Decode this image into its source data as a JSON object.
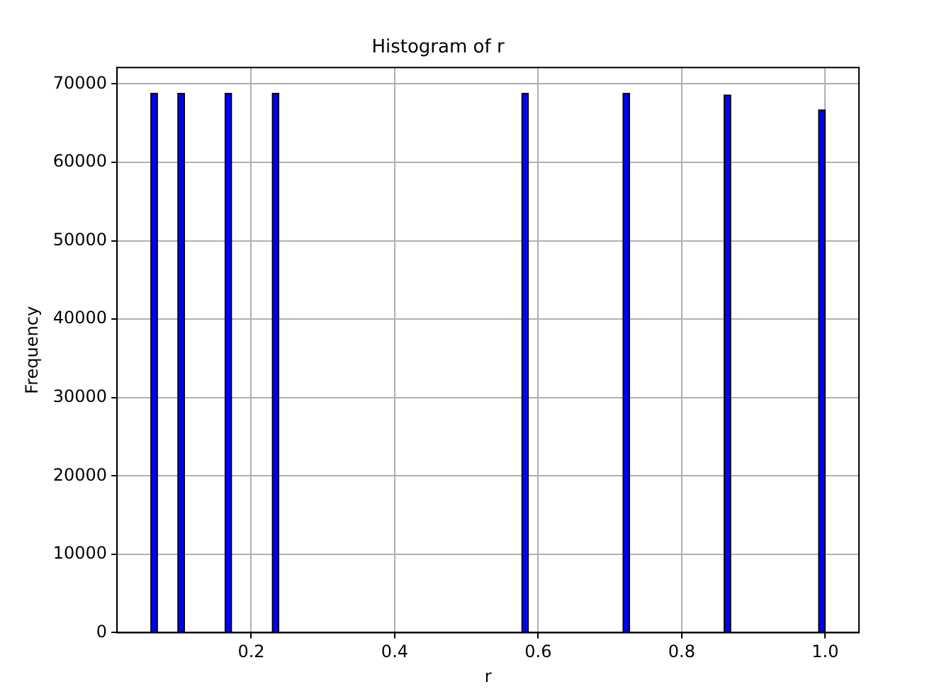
{
  "chart_data": {
    "type": "histogram",
    "title": "Histogram of r",
    "xlabel": "r",
    "ylabel": "Frequency",
    "bins": [
      0.06,
      0.0694,
      0.0788,
      0.0882,
      0.0976,
      0.107,
      0.1164,
      0.1258,
      0.1352,
      0.1446,
      0.154,
      0.1634,
      0.1728,
      0.1822,
      0.1916,
      0.201,
      0.2104,
      0.2198,
      0.2292,
      0.2386,
      0.248,
      0.2574,
      0.2668,
      0.2762,
      0.2856,
      0.295,
      0.3044,
      0.3138,
      0.3232,
      0.3326,
      0.342,
      0.3514,
      0.3608,
      0.3702,
      0.3796,
      0.389,
      0.3984,
      0.4078,
      0.4172,
      0.4266,
      0.436,
      0.4454,
      0.4548,
      0.4642,
      0.4736,
      0.483,
      0.4924,
      0.5018,
      0.5112,
      0.5206,
      0.53,
      0.5394,
      0.5488,
      0.5582,
      0.5676,
      0.577,
      0.5864,
      0.5958,
      0.6052,
      0.6146,
      0.624,
      0.6334,
      0.6428,
      0.6522,
      0.6616,
      0.671,
      0.6804,
      0.6898,
      0.6992,
      0.7086,
      0.718,
      0.7274,
      0.7368,
      0.7462,
      0.7556,
      0.765,
      0.7744,
      0.7838,
      0.7932,
      0.8026,
      0.812,
      0.8214,
      0.8308,
      0.8402,
      0.8496,
      0.859,
      0.8684,
      0.8778,
      0.8872,
      0.8966,
      0.906,
      0.9154,
      0.9248,
      0.9342,
      0.9436,
      0.953,
      0.9624,
      0.9718,
      0.9812,
      0.9906,
      1.0
    ],
    "values": [
      68800,
      0,
      0,
      0,
      68800,
      0,
      0,
      0,
      0,
      0,
      0,
      68800,
      0,
      0,
      0,
      0,
      0,
      0,
      68800,
      0,
      0,
      0,
      0,
      0,
      0,
      0,
      0,
      0,
      0,
      0,
      0,
      0,
      0,
      0,
      0,
      0,
      0,
      0,
      0,
      0,
      0,
      0,
      0,
      0,
      0,
      0,
      0,
      0,
      0,
      0,
      0,
      0,
      0,
      0,
      0,
      68800,
      0,
      0,
      0,
      0,
      0,
      0,
      0,
      0,
      0,
      0,
      0,
      0,
      0,
      0,
      68800,
      0,
      0,
      0,
      0,
      0,
      0,
      0,
      0,
      0,
      0,
      0,
      0,
      0,
      0,
      68600,
      0,
      0,
      0,
      0,
      0,
      0,
      0,
      0,
      0,
      0,
      0,
      0,
      0,
      66700
    ],
    "color": "#0000ff",
    "xlim": [
      0.013,
      1.047
    ],
    "xticks": [
      0.2,
      0.4,
      0.6,
      0.8,
      {
        "value": 1,
        "label": "1.0"
      }
    ],
    "ylim": [
      0,
      72100
    ],
    "yticks": [
      0,
      10000,
      20000,
      30000,
      40000,
      50000,
      60000,
      70000
    ],
    "grid": true
  }
}
